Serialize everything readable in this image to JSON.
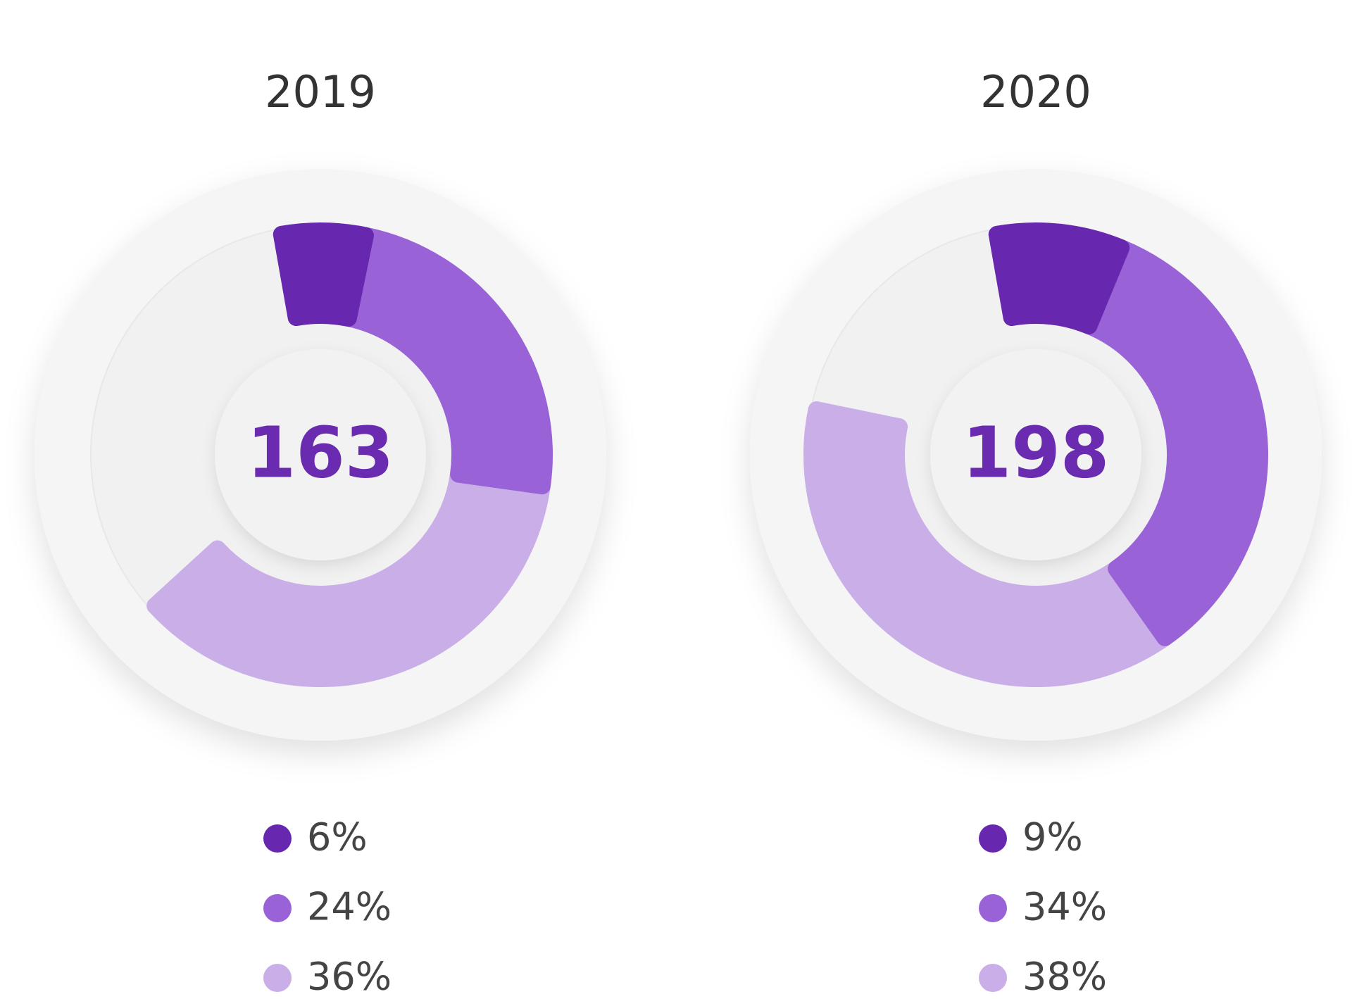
{
  "chart_data": [
    {
      "type": "donut",
      "title": "2019",
      "center_value": 163,
      "values": [
        6,
        24,
        36
      ],
      "value_labels": [
        "6%",
        "24%",
        "36%"
      ],
      "colors": [
        "#6727ae",
        "#9963d7",
        "#c9aee8"
      ]
    },
    {
      "type": "donut",
      "title": "2020",
      "center_value": 198,
      "values": [
        9,
        34,
        38
      ],
      "value_labels": [
        "9%",
        "34%",
        "38%"
      ],
      "colors": [
        "#6727ae",
        "#9963d7",
        "#c9aee8"
      ]
    }
  ]
}
